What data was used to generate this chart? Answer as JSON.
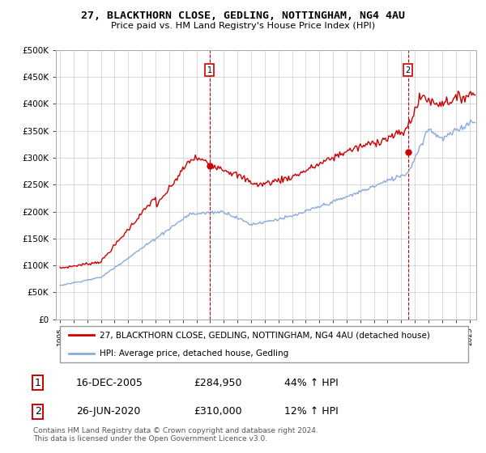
{
  "title": "27, BLACKTHORN CLOSE, GEDLING, NOTTINGHAM, NG4 4AU",
  "subtitle": "Price paid vs. HM Land Registry's House Price Index (HPI)",
  "ylabel_ticks": [
    "£0",
    "£50K",
    "£100K",
    "£150K",
    "£200K",
    "£250K",
    "£300K",
    "£350K",
    "£400K",
    "£450K",
    "£500K"
  ],
  "ytick_vals": [
    0,
    50000,
    100000,
    150000,
    200000,
    250000,
    300000,
    350000,
    400000,
    450000,
    500000
  ],
  "xlim_start": 1994.7,
  "xlim_end": 2025.5,
  "ylim": [
    0,
    500000
  ],
  "line1_color": "#cc0000",
  "line2_color": "#88aadd",
  "marker1_date": 2005.96,
  "marker1_val": 284950,
  "marker2_date": 2020.5,
  "marker2_val": 310000,
  "vline1_date": 2005.96,
  "vline2_date": 2020.5,
  "ann1_y": 462000,
  "ann2_y": 462000,
  "legend_line1": "27, BLACKTHORN CLOSE, GEDLING, NOTTINGHAM, NG4 4AU (detached house)",
  "legend_line2": "HPI: Average price, detached house, Gedling",
  "table_row1": [
    "1",
    "16-DEC-2005",
    "£284,950",
    "44% ↑ HPI"
  ],
  "table_row2": [
    "2",
    "26-JUN-2020",
    "£310,000",
    "12% ↑ HPI"
  ],
  "footer": "Contains HM Land Registry data © Crown copyright and database right 2024.\nThis data is licensed under the Open Government Licence v3.0.",
  "background_color": "#ffffff",
  "grid_color": "#cccccc"
}
